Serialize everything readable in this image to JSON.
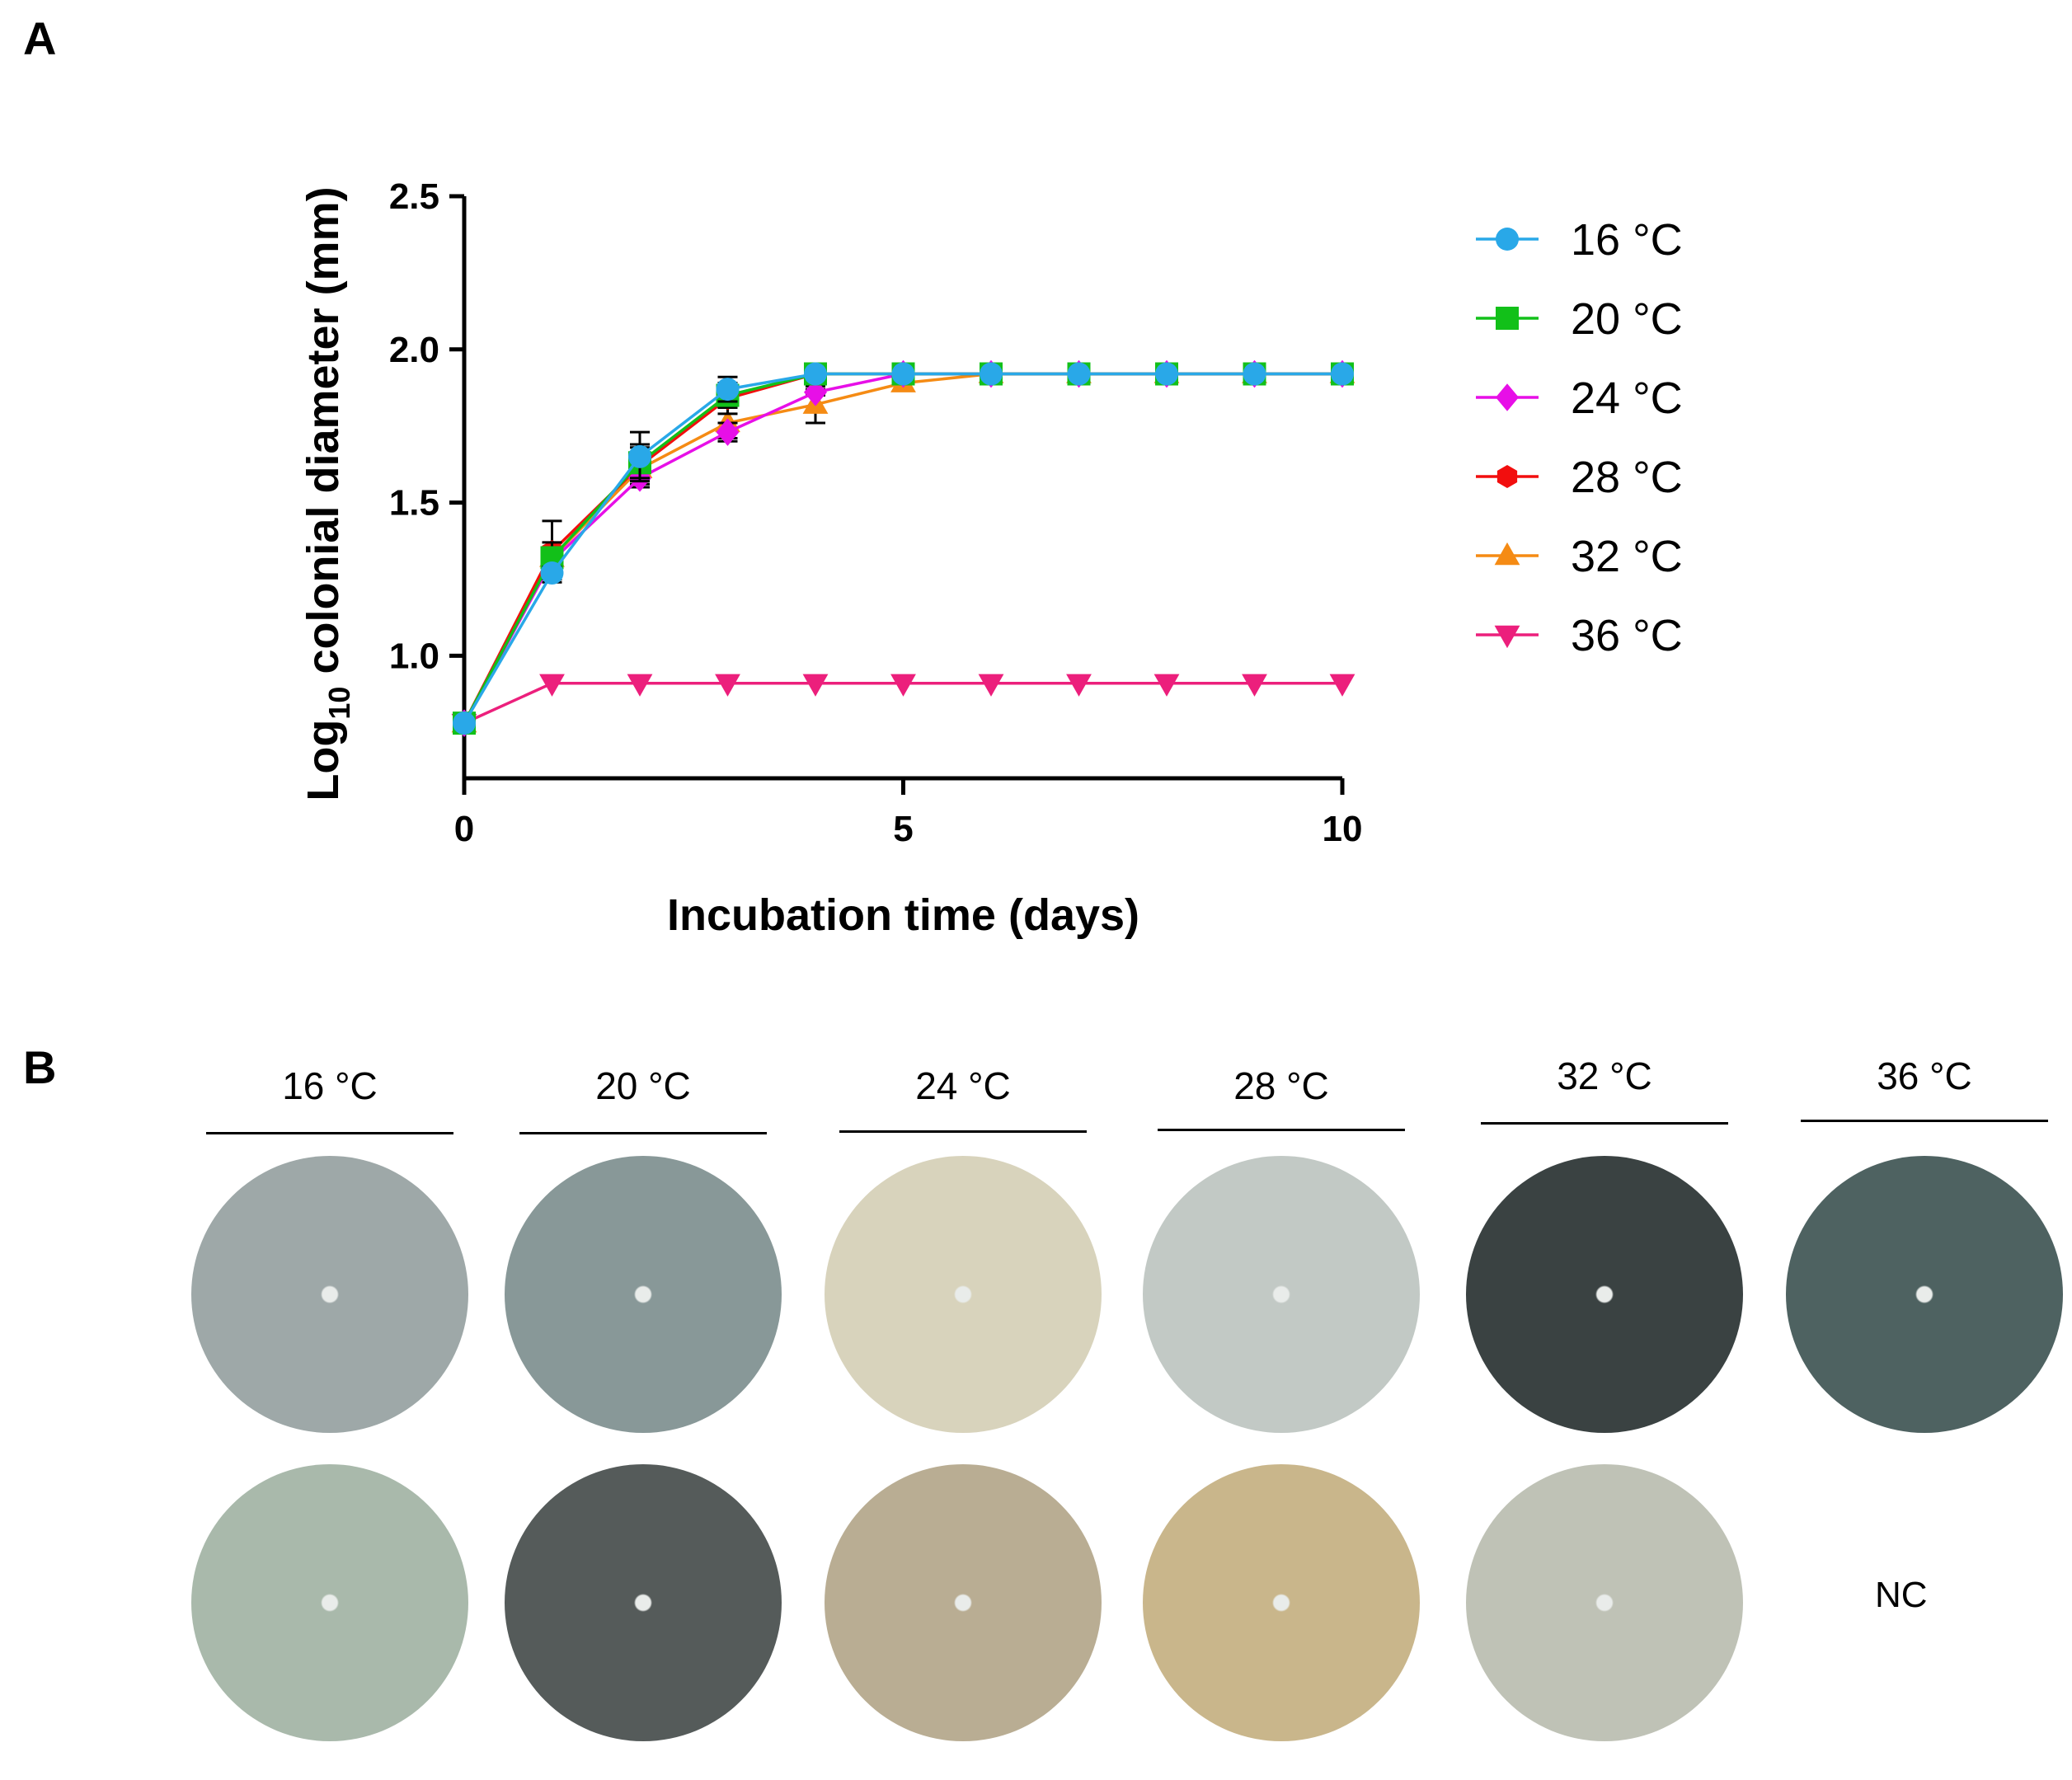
{
  "panel_a_label": "A",
  "panel_b_label": "B",
  "chart_data": {
    "type": "line",
    "title": "",
    "xlabel": "Incubation time (days)",
    "ylabel_main": "Log",
    "ylabel_sub": "10",
    "ylabel_rest": " colonial diameter (mm)",
    "xlim": [
      0,
      10
    ],
    "ylim": [
      0.6,
      2.5
    ],
    "xticks": [
      0,
      5,
      10
    ],
    "yticks": [
      1.0,
      1.5,
      2.0,
      2.5
    ],
    "ytick_labels": [
      "1.0",
      "1.5",
      "2.0",
      "2.5"
    ],
    "grid": false,
    "legend_position": "right",
    "x": [
      0,
      1,
      2,
      3,
      4,
      5,
      6,
      7,
      8,
      9,
      10
    ],
    "series": [
      {
        "name": "16 °C",
        "color": "#29a8e8",
        "marker": "circle",
        "values": [
          0.78,
          1.27,
          1.65,
          1.87,
          1.92,
          1.92,
          1.92,
          1.92,
          1.92,
          1.92,
          1.92
        ],
        "error": [
          0,
          0.02,
          0.08,
          0.04,
          0,
          0,
          0,
          0,
          0,
          0,
          0
        ]
      },
      {
        "name": "20 °C",
        "color": "#12c019",
        "marker": "square",
        "values": [
          0.78,
          1.32,
          1.63,
          1.85,
          1.92,
          1.92,
          1.92,
          1.92,
          1.92,
          1.92,
          1.92
        ],
        "error": [
          0,
          0.05,
          0.05,
          0.04,
          0,
          0,
          0,
          0,
          0,
          0,
          0
        ]
      },
      {
        "name": "24 °C",
        "color": "#e70fe7",
        "marker": "diamond",
        "values": [
          0.78,
          1.31,
          1.58,
          1.73,
          1.86,
          1.92,
          1.92,
          1.92,
          1.92,
          1.92,
          1.92
        ],
        "error": [
          0,
          0.02,
          0.03,
          0.03,
          0.01,
          0,
          0,
          0,
          0,
          0,
          0
        ]
      },
      {
        "name": "28 °C",
        "color": "#f20e0e",
        "marker": "hexagon",
        "values": [
          0.78,
          1.34,
          1.62,
          1.84,
          1.92,
          1.92,
          1.92,
          1.92,
          1.92,
          1.92,
          1.92
        ],
        "error": [
          0,
          0.1,
          0.07,
          0.05,
          0,
          0,
          0,
          0,
          0,
          0,
          0
        ]
      },
      {
        "name": "32 °C",
        "color": "#f58b14",
        "marker": "triangle-up",
        "values": [
          0.78,
          1.32,
          1.61,
          1.76,
          1.82,
          1.89,
          1.92,
          1.92,
          1.92,
          1.92,
          1.92
        ],
        "error": [
          0,
          0.03,
          0.05,
          0.05,
          0.06,
          0.02,
          0,
          0,
          0,
          0,
          0
        ]
      },
      {
        "name": "36 °C",
        "color": "#ec1f7c",
        "marker": "triangle-down",
        "values": [
          0.78,
          0.91,
          0.91,
          0.91,
          0.91,
          0.91,
          0.91,
          0.91,
          0.91,
          0.91,
          0.91
        ],
        "error": [
          0,
          0,
          0,
          0,
          0,
          0,
          0,
          0,
          0,
          0,
          0
        ]
      }
    ]
  },
  "panel_b": {
    "temperatures": [
      "16 °C",
      "20 °C",
      "24 °C",
      "28 °C",
      "32 °C",
      "36 °C"
    ],
    "plate_colors": {
      "top": [
        "#9ea8a8",
        "#889898",
        "#d8d3bc",
        "#c2c9c5",
        "#3a4242",
        "#4e6261"
      ],
      "bottom": [
        "#a9b9ab",
        "#555b5a",
        "#b9ad93",
        "#c9b68b",
        "#bfc2b6"
      ]
    },
    "nc_label": "NC"
  }
}
